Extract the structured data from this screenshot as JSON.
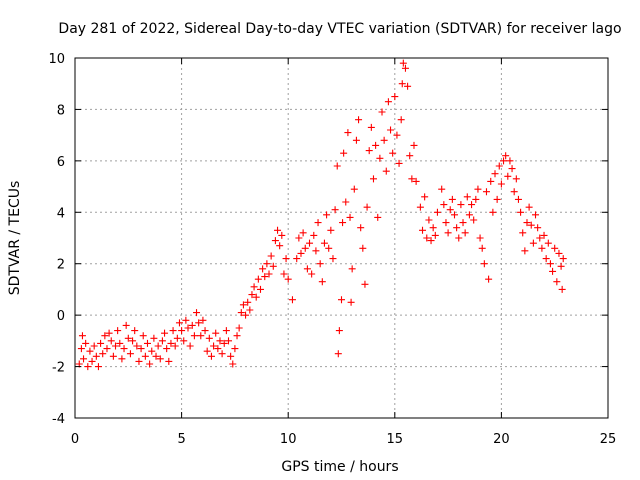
{
  "chart_data": {
    "type": "scatter",
    "title": "Day 281 of 2022, Sidereal Day-to-day VTEC variation (SDTVAR) for receiver lago",
    "xlabel": "GPS time / hours",
    "ylabel": "SDTVAR / TECUs",
    "xlim": [
      0,
      25
    ],
    "ylim": [
      -4,
      10
    ],
    "xticks": [
      "0",
      "5",
      "10",
      "15",
      "20",
      "25"
    ],
    "yticks": [
      "-4",
      "-2",
      "0",
      "2",
      "4",
      "6",
      "8",
      "10"
    ],
    "grid": true,
    "marker": "+",
    "series": [
      {
        "name": "SDTVAR",
        "color": "#ff0000",
        "points": [
          [
            0.2,
            -1.9
          ],
          [
            0.3,
            -1.3
          ],
          [
            0.35,
            -0.8
          ],
          [
            0.4,
            -1.7
          ],
          [
            0.5,
            -1.1
          ],
          [
            0.6,
            -2.0
          ],
          [
            0.7,
            -1.4
          ],
          [
            0.8,
            -1.8
          ],
          [
            0.9,
            -1.2
          ],
          [
            1.0,
            -1.6
          ],
          [
            1.1,
            -2.0
          ],
          [
            1.2,
            -1.1
          ],
          [
            1.3,
            -1.5
          ],
          [
            1.4,
            -0.8
          ],
          [
            1.5,
            -1.3
          ],
          [
            1.6,
            -0.7
          ],
          [
            1.7,
            -1.0
          ],
          [
            1.8,
            -1.6
          ],
          [
            1.9,
            -1.2
          ],
          [
            2.0,
            -0.6
          ],
          [
            2.1,
            -1.1
          ],
          [
            2.2,
            -1.7
          ],
          [
            2.3,
            -1.3
          ],
          [
            2.4,
            -0.4
          ],
          [
            2.5,
            -0.9
          ],
          [
            2.6,
            -1.5
          ],
          [
            2.7,
            -1.0
          ],
          [
            2.8,
            -0.6
          ],
          [
            2.9,
            -1.2
          ],
          [
            3.0,
            -1.8
          ],
          [
            3.1,
            -1.3
          ],
          [
            3.2,
            -0.8
          ],
          [
            3.3,
            -1.6
          ],
          [
            3.4,
            -1.1
          ],
          [
            3.5,
            -1.9
          ],
          [
            3.6,
            -1.4
          ],
          [
            3.7,
            -0.9
          ],
          [
            3.8,
            -1.6
          ],
          [
            3.9,
            -1.2
          ],
          [
            4.0,
            -1.7
          ],
          [
            4.1,
            -1.0
          ],
          [
            4.2,
            -0.7
          ],
          [
            4.3,
            -1.3
          ],
          [
            4.4,
            -1.8
          ],
          [
            4.5,
            -1.1
          ],
          [
            4.6,
            -0.6
          ],
          [
            4.7,
            -1.2
          ],
          [
            4.8,
            -0.9
          ],
          [
            4.9,
            -0.3
          ],
          [
            5.0,
            -0.6
          ],
          [
            5.1,
            -1.0
          ],
          [
            5.2,
            -0.2
          ],
          [
            5.3,
            -0.5
          ],
          [
            5.4,
            -1.2
          ],
          [
            5.5,
            -0.4
          ],
          [
            5.6,
            -0.8
          ],
          [
            5.7,
            0.1
          ],
          [
            5.8,
            -0.3
          ],
          [
            5.9,
            -0.8
          ],
          [
            6.0,
            -0.2
          ],
          [
            6.1,
            -0.6
          ],
          [
            6.2,
            -1.4
          ],
          [
            6.3,
            -0.9
          ],
          [
            6.4,
            -1.6
          ],
          [
            6.5,
            -1.2
          ],
          [
            6.6,
            -0.7
          ],
          [
            6.7,
            -1.3
          ],
          [
            6.8,
            -1.0
          ],
          [
            6.9,
            -1.5
          ],
          [
            7.0,
            -1.1
          ],
          [
            7.1,
            -0.6
          ],
          [
            7.2,
            -1.0
          ],
          [
            7.3,
            -1.6
          ],
          [
            7.4,
            -1.9
          ],
          [
            7.5,
            -1.3
          ],
          [
            7.6,
            -0.8
          ],
          [
            7.7,
            -0.5
          ],
          [
            7.8,
            0.1
          ],
          [
            7.9,
            0.4
          ],
          [
            8.0,
            0.0
          ],
          [
            8.1,
            0.5
          ],
          [
            8.2,
            0.2
          ],
          [
            8.3,
            0.8
          ],
          [
            8.4,
            1.1
          ],
          [
            8.5,
            0.7
          ],
          [
            8.6,
            1.4
          ],
          [
            8.7,
            1.0
          ],
          [
            8.8,
            1.8
          ],
          [
            8.9,
            1.5
          ],
          [
            9.0,
            2.0
          ],
          [
            9.1,
            1.6
          ],
          [
            9.2,
            2.3
          ],
          [
            9.3,
            1.9
          ],
          [
            9.4,
            2.9
          ],
          [
            9.5,
            3.3
          ],
          [
            9.6,
            2.7
          ],
          [
            9.7,
            3.1
          ],
          [
            9.8,
            1.6
          ],
          [
            9.9,
            2.2
          ],
          [
            10.0,
            1.4
          ],
          [
            10.2,
            0.6
          ],
          [
            10.4,
            2.2
          ],
          [
            10.5,
            3.0
          ],
          [
            10.6,
            2.4
          ],
          [
            10.7,
            3.2
          ],
          [
            10.8,
            2.6
          ],
          [
            10.9,
            1.8
          ],
          [
            11.0,
            2.8
          ],
          [
            11.1,
            1.6
          ],
          [
            11.2,
            3.1
          ],
          [
            11.3,
            2.5
          ],
          [
            11.4,
            3.6
          ],
          [
            11.5,
            2.0
          ],
          [
            11.6,
            1.3
          ],
          [
            11.7,
            2.8
          ],
          [
            11.8,
            3.9
          ],
          [
            11.9,
            2.6
          ],
          [
            12.0,
            3.3
          ],
          [
            12.1,
            2.2
          ],
          [
            12.2,
            4.1
          ],
          [
            12.3,
            5.8
          ],
          [
            12.35,
            -1.5
          ],
          [
            12.4,
            -0.6
          ],
          [
            12.5,
            0.6
          ],
          [
            12.55,
            3.6
          ],
          [
            12.6,
            6.3
          ],
          [
            12.7,
            4.4
          ],
          [
            12.8,
            7.1
          ],
          [
            12.9,
            3.8
          ],
          [
            12.95,
            0.5
          ],
          [
            13.0,
            1.8
          ],
          [
            13.1,
            4.9
          ],
          [
            13.2,
            6.8
          ],
          [
            13.3,
            7.6
          ],
          [
            13.4,
            3.4
          ],
          [
            13.5,
            2.6
          ],
          [
            13.6,
            1.2
          ],
          [
            13.7,
            4.2
          ],
          [
            13.8,
            6.4
          ],
          [
            13.9,
            7.3
          ],
          [
            14.0,
            5.3
          ],
          [
            14.1,
            6.6
          ],
          [
            14.2,
            3.8
          ],
          [
            14.3,
            6.1
          ],
          [
            14.4,
            7.9
          ],
          [
            14.5,
            6.8
          ],
          [
            14.6,
            5.6
          ],
          [
            14.7,
            8.3
          ],
          [
            14.8,
            7.2
          ],
          [
            14.9,
            6.3
          ],
          [
            15.0,
            8.5
          ],
          [
            15.1,
            7.0
          ],
          [
            15.2,
            5.9
          ],
          [
            15.3,
            7.6
          ],
          [
            15.35,
            9.0
          ],
          [
            15.4,
            9.8
          ],
          [
            15.5,
            9.6
          ],
          [
            15.6,
            8.9
          ],
          [
            15.7,
            6.2
          ],
          [
            15.8,
            5.3
          ],
          [
            15.9,
            6.6
          ],
          [
            16.0,
            5.2
          ],
          [
            16.2,
            4.2
          ],
          [
            16.3,
            3.3
          ],
          [
            16.4,
            4.6
          ],
          [
            16.5,
            3.0
          ],
          [
            16.6,
            3.7
          ],
          [
            16.7,
            2.9
          ],
          [
            16.8,
            3.4
          ],
          [
            16.9,
            3.1
          ],
          [
            17.0,
            4.0
          ],
          [
            17.2,
            4.9
          ],
          [
            17.3,
            4.3
          ],
          [
            17.4,
            3.6
          ],
          [
            17.5,
            3.2
          ],
          [
            17.6,
            4.1
          ],
          [
            17.7,
            4.5
          ],
          [
            17.8,
            3.9
          ],
          [
            17.9,
            3.4
          ],
          [
            18.0,
            3.0
          ],
          [
            18.1,
            4.3
          ],
          [
            18.2,
            3.6
          ],
          [
            18.3,
            3.2
          ],
          [
            18.4,
            4.6
          ],
          [
            18.5,
            3.9
          ],
          [
            18.6,
            4.3
          ],
          [
            18.7,
            3.7
          ],
          [
            18.8,
            4.5
          ],
          [
            18.9,
            4.9
          ],
          [
            19.0,
            3.0
          ],
          [
            19.1,
            2.6
          ],
          [
            19.2,
            2.0
          ],
          [
            19.3,
            4.8
          ],
          [
            19.4,
            1.4
          ],
          [
            19.5,
            5.2
          ],
          [
            19.6,
            4.0
          ],
          [
            19.7,
            5.5
          ],
          [
            19.8,
            4.5
          ],
          [
            19.9,
            5.8
          ],
          [
            20.0,
            5.1
          ],
          [
            20.1,
            6.0
          ],
          [
            20.2,
            6.2
          ],
          [
            20.3,
            5.4
          ],
          [
            20.4,
            6.0
          ],
          [
            20.5,
            5.7
          ],
          [
            20.6,
            4.8
          ],
          [
            20.7,
            5.3
          ],
          [
            20.8,
            4.5
          ],
          [
            20.9,
            4.0
          ],
          [
            21.0,
            3.2
          ],
          [
            21.1,
            2.5
          ],
          [
            21.2,
            3.6
          ],
          [
            21.3,
            4.2
          ],
          [
            21.4,
            3.5
          ],
          [
            21.5,
            2.8
          ],
          [
            21.6,
            3.9
          ],
          [
            21.7,
            3.4
          ],
          [
            21.8,
            3.0
          ],
          [
            21.9,
            2.6
          ],
          [
            22.0,
            3.1
          ],
          [
            22.1,
            2.2
          ],
          [
            22.2,
            2.8
          ],
          [
            22.3,
            2.0
          ],
          [
            22.4,
            1.7
          ],
          [
            22.5,
            2.6
          ],
          [
            22.6,
            1.3
          ],
          [
            22.7,
            2.4
          ],
          [
            22.8,
            1.9
          ],
          [
            22.85,
            1.0
          ],
          [
            22.9,
            2.2
          ]
        ]
      }
    ]
  }
}
